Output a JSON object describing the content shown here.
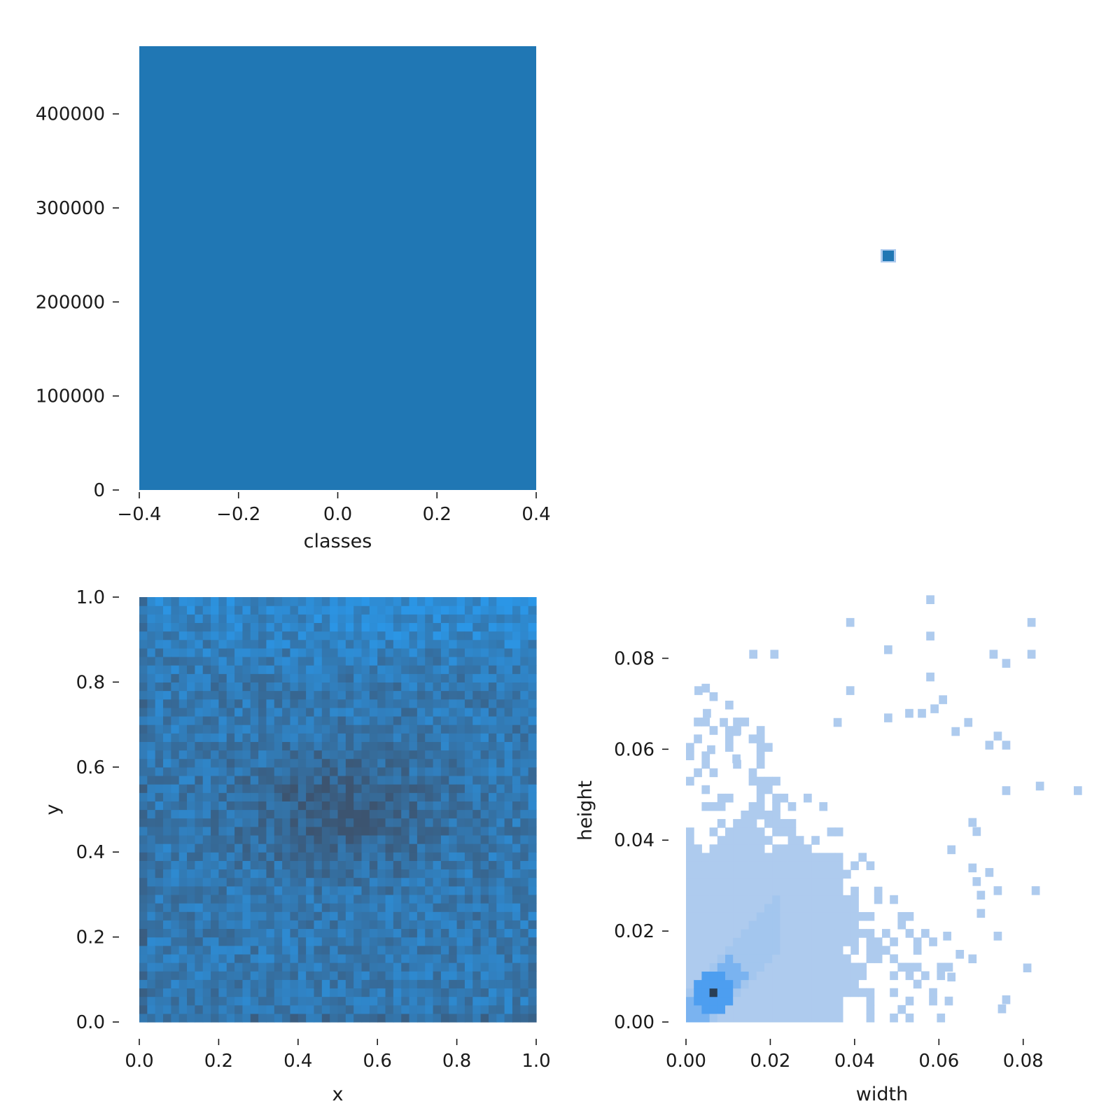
{
  "chart_data": [
    {
      "id": "classes-hist",
      "type": "bar",
      "xlabel": "classes",
      "ylabel": "",
      "xlim": [
        -0.4,
        0.4
      ],
      "ylim": [
        0,
        472000
      ],
      "x_ticks": [
        -0.4,
        -0.2,
        0.0,
        0.2,
        0.4
      ],
      "x_tick_labels": [
        "−0.4",
        "−0.2",
        "0.0",
        "0.2",
        "0.4"
      ],
      "y_ticks": [
        0,
        100000,
        200000,
        300000,
        400000
      ],
      "y_tick_labels": [
        "0",
        "100000",
        "200000",
        "300000",
        "400000"
      ],
      "categories": [
        "0"
      ],
      "bars": [
        {
          "x0": -0.4,
          "x1": 0.4,
          "value": 472000
        }
      ],
      "color": "#2077b4"
    },
    {
      "id": "classes-marginal",
      "type": "heatmap",
      "note_cells": [
        {
          "value": 1
        }
      ],
      "color": "#2077b4"
    },
    {
      "id": "xy-hist",
      "type": "heatmap",
      "xlabel": "x",
      "ylabel": "y",
      "xlim": [
        0,
        1
      ],
      "ylim": [
        0,
        1
      ],
      "bins": 50,
      "x_ticks": [
        0.0,
        0.2,
        0.4,
        0.6,
        0.8,
        1.0
      ],
      "x_tick_labels": [
        "0.0",
        "0.2",
        "0.4",
        "0.6",
        "0.8",
        "1.0"
      ],
      "y_ticks": [
        0.0,
        0.2,
        0.4,
        0.6,
        0.8,
        1.0
      ],
      "y_tick_labels": [
        "0.0",
        "0.2",
        "0.4",
        "0.6",
        "0.8",
        "1.0"
      ],
      "colors": {
        "low": "#3c5470",
        "high": "#2b96e6"
      }
    },
    {
      "id": "wh-hist",
      "type": "heatmap",
      "xlabel": "width",
      "ylabel": "height",
      "xlim": [
        0,
        0.093
      ],
      "ylim": [
        0,
        0.093
      ],
      "x_ticks": [
        0.0,
        0.02,
        0.04,
        0.06,
        0.08
      ],
      "x_tick_labels": [
        "0.00",
        "0.02",
        "0.04",
        "0.06",
        "0.08"
      ],
      "y_ticks": [
        0.0,
        0.02,
        0.04,
        0.06,
        0.08
      ],
      "y_tick_labels": [
        "0.00",
        "0.02",
        "0.04",
        "0.06",
        "0.08"
      ],
      "dense_region": {
        "width": [
          0.0,
          0.036
        ],
        "height": [
          0.0,
          0.037
        ]
      },
      "outliers": [
        [
          0.057,
          0.092
        ],
        [
          0.038,
          0.087
        ],
        [
          0.081,
          0.087
        ],
        [
          0.015,
          0.08
        ],
        [
          0.02,
          0.08
        ],
        [
          0.047,
          0.081
        ],
        [
          0.057,
          0.084
        ],
        [
          0.072,
          0.08
        ],
        [
          0.075,
          0.078
        ],
        [
          0.081,
          0.08
        ],
        [
          0.002,
          0.072
        ],
        [
          0.038,
          0.072
        ],
        [
          0.057,
          0.075
        ],
        [
          0.06,
          0.07
        ],
        [
          0.004,
          0.067
        ],
        [
          0.008,
          0.065
        ],
        [
          0.011,
          0.063
        ],
        [
          0.035,
          0.065
        ],
        [
          0.047,
          0.066
        ],
        [
          0.052,
          0.067
        ],
        [
          0.055,
          0.067
        ],
        [
          0.058,
          0.068
        ],
        [
          0.063,
          0.063
        ],
        [
          0.066,
          0.065
        ],
        [
          0.005,
          0.059
        ],
        [
          0.011,
          0.057
        ],
        [
          0.071,
          0.06
        ],
        [
          0.073,
          0.062
        ],
        [
          0.075,
          0.06
        ],
        [
          0.075,
          0.05
        ],
        [
          0.083,
          0.051
        ],
        [
          0.092,
          0.05
        ],
        [
          0.067,
          0.043
        ],
        [
          0.068,
          0.041
        ],
        [
          0.062,
          0.037
        ],
        [
          0.067,
          0.033
        ],
        [
          0.071,
          0.032
        ],
        [
          0.068,
          0.03
        ],
        [
          0.069,
          0.027
        ],
        [
          0.073,
          0.028
        ],
        [
          0.082,
          0.028
        ],
        [
          0.069,
          0.023
        ],
        [
          0.073,
          0.018
        ],
        [
          0.061,
          0.018
        ],
        [
          0.064,
          0.014
        ],
        [
          0.067,
          0.013
        ],
        [
          0.08,
          0.011
        ],
        [
          0.062,
          0.009
        ],
        [
          0.075,
          0.004
        ],
        [
          0.074,
          0.002
        ]
      ],
      "peak": {
        "width": 0.0055,
        "height": 0.0055
      },
      "colors": {
        "low": "#aecbee",
        "mid": "#4d9ef0",
        "high": "#2a3f55"
      }
    }
  ]
}
